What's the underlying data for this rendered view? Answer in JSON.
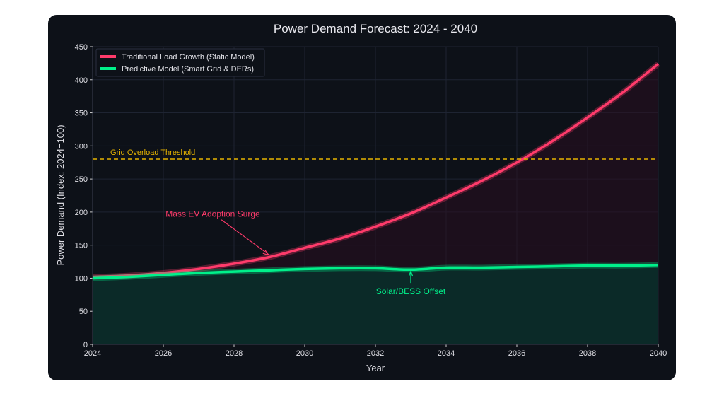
{
  "chart_data": {
    "type": "line",
    "title": "Power Demand Forecast: 2024 - 2040",
    "xlabel": "Year",
    "ylabel": "Power Demand (Index: 2024=100)",
    "xlim": [
      2024,
      2040
    ],
    "ylim": [
      0,
      450
    ],
    "xticks": [
      2024,
      2026,
      2028,
      2030,
      2032,
      2034,
      2036,
      2038,
      2040
    ],
    "yticks": [
      0,
      50,
      100,
      150,
      200,
      250,
      300,
      350,
      400,
      450
    ],
    "grid": true,
    "legend_position": "top-left",
    "x": [
      2024,
      2025,
      2026,
      2027,
      2028,
      2029,
      2030,
      2031,
      2032,
      2033,
      2034,
      2035,
      2036,
      2037,
      2038,
      2039,
      2040
    ],
    "series": [
      {
        "name": "Traditional Load Growth (Static Model)",
        "color": "#ff3b6b",
        "values": [
          102,
          104,
          108,
          114,
          122,
          132,
          146,
          160,
          178,
          198,
          222,
          247,
          275,
          307,
          343,
          381,
          424
        ]
      },
      {
        "name": "Predictive Model (Smart Grid & DERs)",
        "color": "#00f08a",
        "values": [
          100,
          102,
          105,
          108,
          110,
          112,
          114,
          115,
          115,
          113,
          116,
          116,
          117,
          118,
          119,
          119,
          120
        ]
      }
    ],
    "threshold": {
      "value": 280,
      "label": "Grid Overload Threshold",
      "color": "#e6b400"
    },
    "annotations": [
      {
        "text": "Mass EV Adoption Surge",
        "point": [
          2029,
          133
        ],
        "text_at": [
          2027.4,
          197
        ],
        "color": "#ff3b6b"
      },
      {
        "text": "Solar/BESS Offset",
        "point": [
          2033,
          115
        ],
        "text_at": [
          2033,
          80
        ],
        "color": "#00f08a"
      }
    ]
  }
}
